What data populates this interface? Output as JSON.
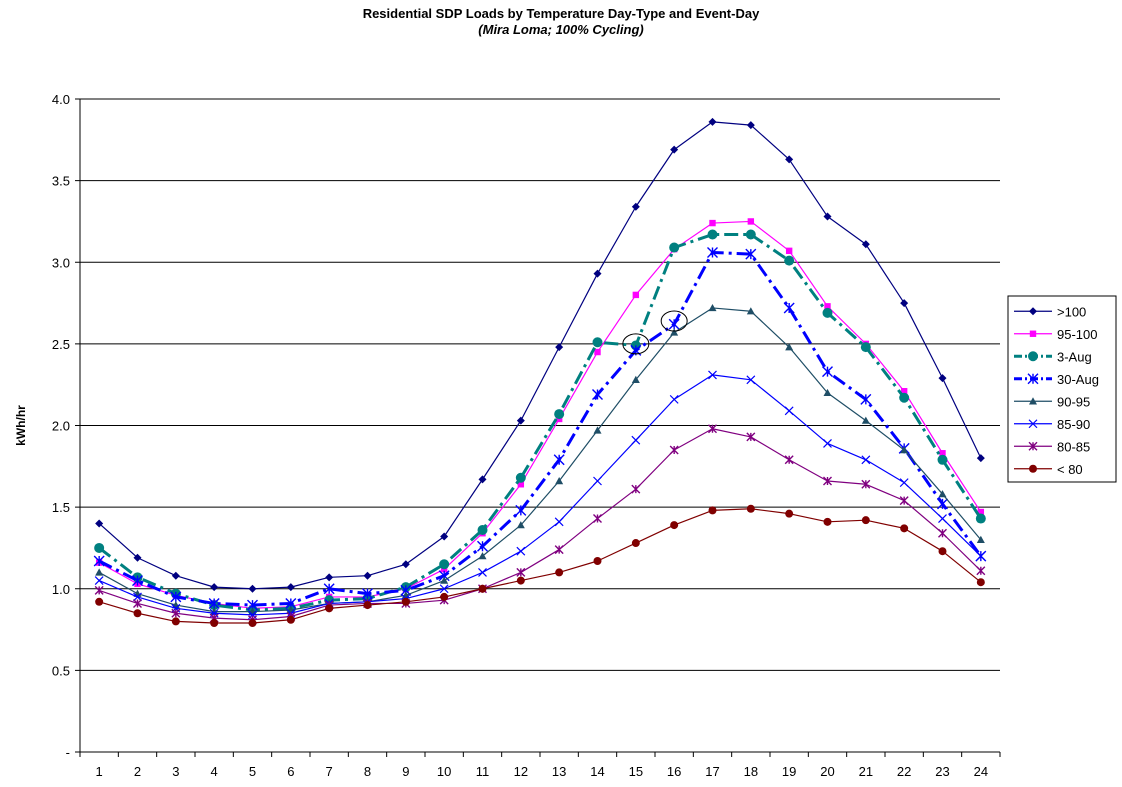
{
  "chart_data": {
    "type": "line",
    "title": "Residential SDP Loads by Temperature Day-Type and Event-Day",
    "subtitle": "(Mira Loma; 100% Cycling)",
    "xlabel": "",
    "ylabel": "kWh/hr",
    "x": [
      1,
      2,
      3,
      4,
      5,
      6,
      7,
      8,
      9,
      10,
      11,
      12,
      13,
      14,
      15,
      16,
      17,
      18,
      19,
      20,
      21,
      22,
      23,
      24
    ],
    "x_tick_labels": [
      "1",
      "2",
      "3",
      "4",
      "5",
      "6",
      "7",
      "8",
      "9",
      "10",
      "11",
      "12",
      "13",
      "14",
      "15",
      "16",
      "17",
      "18",
      "19",
      "20",
      "21",
      "22",
      "23",
      "24"
    ],
    "ylim": [
      0,
      4.0
    ],
    "y_ticks": [
      0,
      0.5,
      1.0,
      1.5,
      2.0,
      2.5,
      3.0,
      3.5,
      4.0
    ],
    "y_tick_labels": [
      "-",
      "0.5",
      "1.0",
      "1.5",
      "2.0",
      "2.5",
      "3.0",
      "3.5",
      "4.0"
    ],
    "grid": true,
    "legend_position": "right",
    "series": [
      {
        "name": ">100",
        "color": "#000080",
        "marker": "diamond",
        "dash": "solid",
        "width": 1.2,
        "values": [
          1.4,
          1.19,
          1.08,
          1.01,
          1.0,
          1.01,
          1.07,
          1.08,
          1.15,
          1.32,
          1.67,
          2.03,
          2.48,
          2.93,
          3.34,
          3.69,
          3.86,
          3.84,
          3.63,
          3.28,
          3.11,
          2.75,
          2.29,
          1.8
        ]
      },
      {
        "name": "95-100",
        "color": "#ff00ff",
        "marker": "square",
        "dash": "solid",
        "width": 1.2,
        "values": [
          1.16,
          1.03,
          0.96,
          0.91,
          0.88,
          0.89,
          0.95,
          0.95,
          1.0,
          1.12,
          1.34,
          1.64,
          2.04,
          2.45,
          2.8,
          3.08,
          3.24,
          3.25,
          3.07,
          2.73,
          2.5,
          2.21,
          1.83,
          1.47
        ]
      },
      {
        "name": "3-Aug",
        "color": "#008080",
        "marker": "circle",
        "dash": "dashdot",
        "width": 3,
        "values": [
          1.25,
          1.07,
          0.97,
          0.9,
          0.87,
          0.88,
          0.93,
          0.94,
          1.01,
          1.15,
          1.36,
          1.68,
          2.07,
          2.51,
          2.49,
          3.09,
          3.17,
          3.17,
          3.01,
          2.69,
          2.48,
          2.17,
          1.79,
          1.43
        ]
      },
      {
        "name": "30-Aug",
        "color": "#0000ff",
        "marker": "star",
        "dash": "dashdot",
        "width": 3,
        "values": [
          1.17,
          1.05,
          0.95,
          0.91,
          0.9,
          0.91,
          1.0,
          0.97,
          0.99,
          1.08,
          1.26,
          1.48,
          1.79,
          2.19,
          2.46,
          2.62,
          3.06,
          3.05,
          2.72,
          2.33,
          2.16,
          1.86,
          1.52,
          1.2
        ]
      },
      {
        "name": "90-95",
        "color": "#1f4e66",
        "marker": "triangle",
        "dash": "solid",
        "width": 1.2,
        "values": [
          1.1,
          0.97,
          0.9,
          0.86,
          0.86,
          0.87,
          0.91,
          0.92,
          0.96,
          1.05,
          1.2,
          1.39,
          1.66,
          1.97,
          2.28,
          2.57,
          2.72,
          2.7,
          2.48,
          2.2,
          2.03,
          1.85,
          1.58,
          1.3
        ]
      },
      {
        "name": "85-90",
        "color": "#0000ff",
        "marker": "x",
        "dash": "solid",
        "width": 1.2,
        "values": [
          1.05,
          0.95,
          0.88,
          0.85,
          0.84,
          0.85,
          0.91,
          0.92,
          0.94,
          1.0,
          1.1,
          1.23,
          1.41,
          1.66,
          1.91,
          2.16,
          2.31,
          2.28,
          2.09,
          1.89,
          1.79,
          1.65,
          1.43,
          1.2
        ]
      },
      {
        "name": "80-85",
        "color": "#800080",
        "marker": "star",
        "dash": "solid",
        "width": 1.2,
        "values": [
          0.99,
          0.91,
          0.85,
          0.82,
          0.81,
          0.83,
          0.9,
          0.91,
          0.91,
          0.93,
          1.0,
          1.1,
          1.24,
          1.43,
          1.61,
          1.85,
          1.98,
          1.93,
          1.79,
          1.66,
          1.64,
          1.54,
          1.34,
          1.11
        ]
      },
      {
        "name": "< 80",
        "color": "#800000",
        "marker": "circle",
        "dash": "solid",
        "width": 1.2,
        "values": [
          0.92,
          0.85,
          0.8,
          0.79,
          0.79,
          0.81,
          0.88,
          0.9,
          0.92,
          0.95,
          1.0,
          1.05,
          1.1,
          1.17,
          1.28,
          1.39,
          1.48,
          1.49,
          1.46,
          1.41,
          1.42,
          1.37,
          1.23,
          1.04
        ]
      }
    ],
    "annotations": [
      {
        "type": "ellipse",
        "x": 15,
        "y": 2.5
      },
      {
        "type": "ellipse",
        "x": 16,
        "y": 2.64
      }
    ]
  }
}
